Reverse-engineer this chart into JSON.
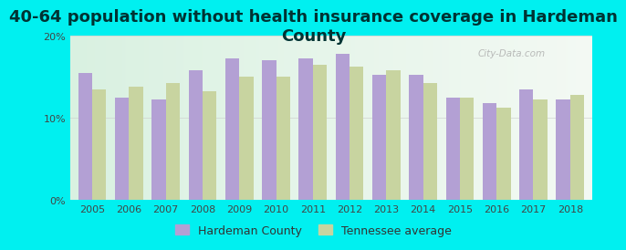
{
  "title": "40-64 population without health insurance coverage in Hardeman\nCounty",
  "years": [
    2005,
    2006,
    2007,
    2008,
    2009,
    2010,
    2011,
    2012,
    2013,
    2014,
    2015,
    2016,
    2017,
    2018
  ],
  "hardeman": [
    15.5,
    12.5,
    12.2,
    15.8,
    17.2,
    17.0,
    17.2,
    17.8,
    15.2,
    15.2,
    12.5,
    11.8,
    13.5,
    12.2
  ],
  "tennessee": [
    13.5,
    13.8,
    14.2,
    13.2,
    15.0,
    15.0,
    16.5,
    16.2,
    15.8,
    14.2,
    12.5,
    11.2,
    12.2,
    12.8
  ],
  "hardeman_color": "#b3a0d4",
  "tennessee_color": "#c8d4a0",
  "background_color": "#00f0f0",
  "plot_bg_color": "#eaf5ea",
  "ylim": [
    0,
    20
  ],
  "ytick_labels": [
    "0%",
    "10%",
    "20%"
  ],
  "title_fontsize": 13,
  "tick_fontsize": 8,
  "legend_fontsize": 9,
  "bar_width": 0.38,
  "legend_hardeman": "Hardeman County",
  "legend_tennessee": "Tennessee average",
  "watermark": "City-Data.com"
}
